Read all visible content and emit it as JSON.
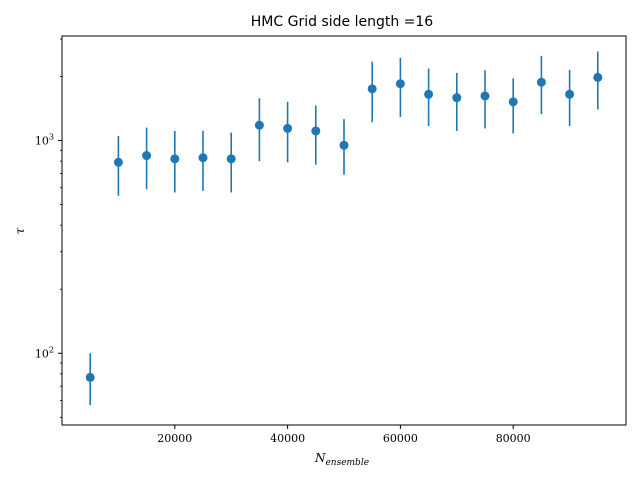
{
  "chart_data": {
    "type": "scatter",
    "title": "HMC Grid side length =16",
    "xlabel": "N",
    "xlabel_subscript": "ensemble",
    "ylabel": "τ",
    "x_scale": "linear",
    "y_scale": "log",
    "xlim": [
      0,
      100000
    ],
    "ylim": [
      46,
      3100
    ],
    "x_ticks": [
      20000,
      40000,
      60000,
      80000
    ],
    "x_tick_labels": [
      "20000",
      "40000",
      "60000",
      "80000"
    ],
    "y_major_ticks": [
      100,
      1000
    ],
    "y_tick_labels": [
      "10",
      "10"
    ],
    "y_tick_exponents": [
      "2",
      "3"
    ],
    "grid": false,
    "legend": "none",
    "color": "#1f77b4",
    "series": [
      {
        "x": [
          5000,
          10000,
          15000,
          20000,
          25000,
          30000,
          35000,
          40000,
          45000,
          50000,
          55000,
          60000,
          65000,
          70000,
          75000,
          80000,
          85000,
          90000,
          95000
        ],
        "y": [
          77,
          790,
          850,
          820,
          830,
          820,
          1180,
          1140,
          1110,
          950,
          1750,
          1850,
          1650,
          1590,
          1620,
          1520,
          1880,
          1650,
          1980
        ],
        "y_err_low": [
          57,
          550,
          590,
          570,
          580,
          570,
          800,
          790,
          770,
          690,
          1220,
          1290,
          1170,
          1110,
          1140,
          1080,
          1330,
          1170,
          1400
        ],
        "y_err_high": [
          100,
          1050,
          1150,
          1110,
          1110,
          1090,
          1580,
          1520,
          1460,
          1260,
          2350,
          2450,
          2180,
          2080,
          2140,
          1960,
          2500,
          2150,
          2620
        ]
      }
    ]
  }
}
